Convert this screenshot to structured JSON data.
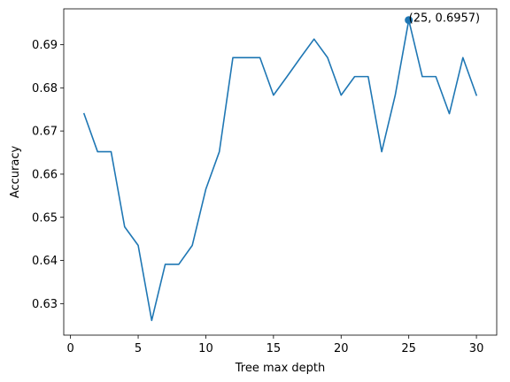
{
  "chart_data": {
    "type": "line",
    "xlabel": "Tree max depth",
    "ylabel": "Accuracy",
    "xlim": [
      -0.5,
      31.5
    ],
    "ylim": [
      0.6227,
      0.6983
    ],
    "xticks": [
      0,
      5,
      10,
      15,
      20,
      25,
      30
    ],
    "yticks": [
      0.63,
      0.64,
      0.65,
      0.66,
      0.67,
      0.68,
      0.69
    ],
    "ytick_labels": [
      "0.63",
      "0.64",
      "0.65",
      "0.66",
      "0.67",
      "0.68",
      "0.69"
    ],
    "grid": false,
    "series": [
      {
        "color": "#1f77b4",
        "x": [
          1,
          2,
          3,
          4,
          5,
          6,
          7,
          8,
          9,
          10,
          11,
          12,
          13,
          14,
          15,
          16,
          17,
          18,
          19,
          20,
          21,
          22,
          23,
          24,
          25,
          26,
          27,
          28,
          29,
          30
        ],
        "y": [
          0.674,
          0.6652,
          0.6652,
          0.6478,
          0.6435,
          0.6261,
          0.6391,
          0.6391,
          0.6435,
          0.6565,
          0.6652,
          0.687,
          0.687,
          0.687,
          0.6783,
          0.6826,
          0.687,
          0.6913,
          0.687,
          0.6783,
          0.6826,
          0.6826,
          0.6652,
          0.6783,
          0.6957,
          0.6826,
          0.6826,
          0.674,
          0.687,
          0.6783
        ]
      }
    ],
    "highlight": {
      "x": 25,
      "y": 0.6957,
      "label": "(25, 0.6957)"
    }
  }
}
